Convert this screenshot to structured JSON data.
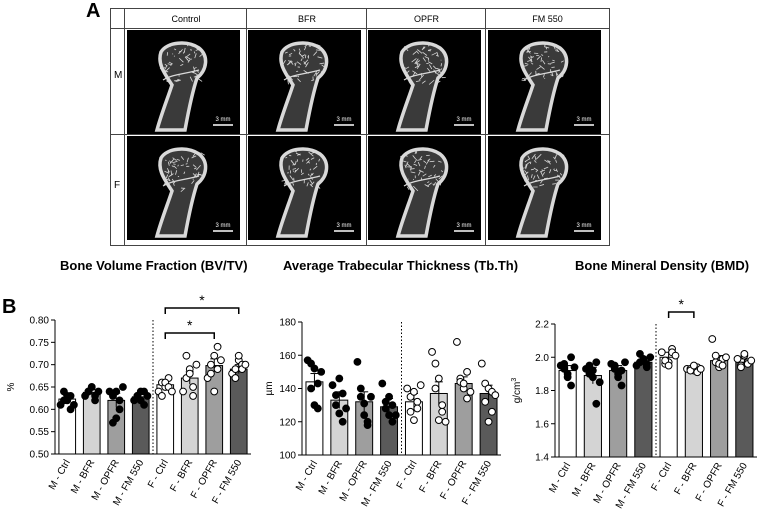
{
  "panel_a": {
    "letter": "A",
    "columns": [
      "Control",
      "BFR",
      "OPFR",
      "FM 550"
    ],
    "rows": [
      "M",
      "F"
    ],
    "scale_bar_label": "3 mm",
    "colors": {
      "tile_background": "#000000",
      "bone": "#d9d9d9"
    }
  },
  "panel_b": {
    "letter": "B"
  },
  "chart_data": [
    {
      "type": "bar",
      "title": "Bone Volume Fraction (BV/TV)",
      "ylabel": "%",
      "ylim": [
        0.5,
        0.8
      ],
      "yticks": [
        "0.50",
        "0.55",
        "0.60",
        "0.65",
        "0.70",
        "0.75",
        "0.80"
      ],
      "categories": [
        "M - Ctrl",
        "M - BFR",
        "M - OPFR",
        "M - FM 550",
        "F - Ctrl",
        "F - BFR",
        "F - OPFR",
        "F - FM 550"
      ],
      "values": [
        0.623,
        0.638,
        0.62,
        0.628,
        0.655,
        0.67,
        0.698,
        0.69
      ],
      "errors": [
        0.008,
        0.006,
        0.016,
        0.007,
        0.007,
        0.014,
        0.015,
        0.01
      ],
      "bar_colors": [
        "#ffffff",
        "#d4d4d4",
        "#9e9e9e",
        "#5a5a5a",
        "#ffffff",
        "#d4d4d4",
        "#9e9e9e",
        "#5a5a5a"
      ],
      "point_style": [
        "filled",
        "filled",
        "filled",
        "filled",
        "open",
        "open",
        "open",
        "open"
      ],
      "points": [
        [
          0.61,
          0.62,
          0.63,
          0.6,
          0.64,
          0.62,
          0.63,
          0.61
        ],
        [
          0.63,
          0.64,
          0.65,
          0.62,
          0.64,
          0.65,
          0.63,
          0.64
        ],
        [
          0.64,
          0.63,
          0.58,
          0.62,
          0.57,
          0.64,
          0.6,
          0.65
        ],
        [
          0.62,
          0.63,
          0.64,
          0.61,
          0.63,
          0.62,
          0.64,
          0.63
        ],
        [
          0.64,
          0.66,
          0.65,
          0.67,
          0.63,
          0.66,
          0.65,
          0.64
        ],
        [
          0.64,
          0.67,
          0.69,
          0.65,
          0.72,
          0.68,
          0.63,
          0.7
        ],
        [
          0.67,
          0.7,
          0.72,
          0.74,
          0.68,
          0.64,
          0.69,
          0.71
        ],
        [
          0.68,
          0.69,
          0.71,
          0.7,
          0.67,
          0.72,
          0.69,
          0.7
        ]
      ],
      "significance": [
        {
          "from": 4,
          "to": 6,
          "label": "*"
        },
        {
          "from": 4,
          "to": 7,
          "label": "*"
        }
      ]
    },
    {
      "type": "bar",
      "title": "Average Trabecular Thickness (Tb.Th)",
      "ylabel": "µm",
      "ylim": [
        100,
        180
      ],
      "yticks": [
        "100",
        "120",
        "140",
        "160",
        "180"
      ],
      "categories": [
        "M - Ctrl",
        "M - BFR",
        "M - OPFR",
        "M - FM 550",
        "F - Ctrl",
        "F - BFR",
        "F - OPFR",
        "F - FM 550"
      ],
      "values": [
        144,
        133,
        132,
        129,
        132,
        137,
        143,
        137
      ],
      "errors": [
        5,
        5,
        6,
        5,
        5,
        7,
        4,
        5
      ],
      "bar_colors": [
        "#ffffff",
        "#d4d4d4",
        "#9e9e9e",
        "#5a5a5a",
        "#ffffff",
        "#d4d4d4",
        "#9e9e9e",
        "#5a5a5a"
      ],
      "point_style": [
        "filled",
        "filled",
        "filled",
        "filled",
        "open",
        "open",
        "open",
        "open"
      ],
      "points": [
        [
          157,
          155,
          152,
          143,
          140,
          130,
          128,
          150
        ],
        [
          142,
          130,
          125,
          120,
          136,
          146,
          137,
          128
        ],
        [
          156,
          135,
          124,
          120,
          140,
          131,
          118,
          135
        ],
        [
          143,
          132,
          124,
          120,
          128,
          135,
          130,
          124
        ],
        [
          140,
          126,
          121,
          132,
          135,
          138,
          128,
          142
        ],
        [
          162,
          155,
          121,
          130,
          140,
          146,
          126,
          120
        ],
        [
          168,
          146,
          140,
          134,
          144,
          143,
          150,
          138
        ],
        [
          155,
          143,
          140,
          126,
          132,
          120,
          138,
          136
        ]
      ],
      "significance": []
    },
    {
      "type": "bar",
      "title": "Bone Mineral Density (BMD)",
      "ylabel": "g/cm",
      "ylabel_superscript": "3",
      "ylim": [
        1.4,
        2.2
      ],
      "yticks": [
        "1.4",
        "1.6",
        "1.8",
        "2.0",
        "2.2"
      ],
      "categories": [
        "M - Ctrl",
        "M - BFR",
        "M - OPFR",
        "M - FM 550",
        "F - Ctrl",
        "F - BFR",
        "F - OPFR",
        "F - FM 550"
      ],
      "values": [
        1.92,
        1.89,
        1.92,
        1.97,
        2.0,
        1.93,
        1.98,
        1.97
      ],
      "errors": [
        0.03,
        0.05,
        0.03,
        0.03,
        0.03,
        0.01,
        0.03,
        0.02
      ],
      "bar_colors": [
        "#ffffff",
        "#d4d4d4",
        "#9e9e9e",
        "#5a5a5a",
        "#ffffff",
        "#d4d4d4",
        "#9e9e9e",
        "#5a5a5a"
      ],
      "point_style": [
        "filled",
        "filled",
        "filled",
        "filled",
        "open",
        "open",
        "open",
        "open"
      ],
      "points": [
        [
          1.95,
          1.93,
          1.88,
          1.83,
          1.96,
          1.9,
          2.0,
          1.94
        ],
        [
          1.93,
          1.95,
          1.88,
          1.72,
          1.9,
          1.92,
          1.97,
          1.85
        ],
        [
          1.96,
          1.93,
          1.88,
          1.83,
          1.95,
          1.9,
          1.92,
          1.97
        ],
        [
          1.95,
          2.02,
          1.98,
          1.94,
          1.97,
          1.99,
          1.96,
          2.0
        ],
        [
          2.03,
          1.96,
          1.97,
          2.05,
          1.98,
          1.95,
          2.03,
          2.01
        ],
        [
          1.93,
          1.93,
          1.92,
          1.94,
          1.92,
          1.95,
          1.91,
          1.93
        ],
        [
          2.11,
          1.97,
          1.94,
          1.99,
          2.01,
          1.96,
          1.95,
          2.0
        ],
        [
          1.99,
          1.95,
          2.01,
          1.97,
          1.94,
          2.02,
          1.96,
          1.98
        ]
      ],
      "significance": [
        {
          "from": 4,
          "to": 5,
          "label": "*"
        }
      ]
    }
  ]
}
